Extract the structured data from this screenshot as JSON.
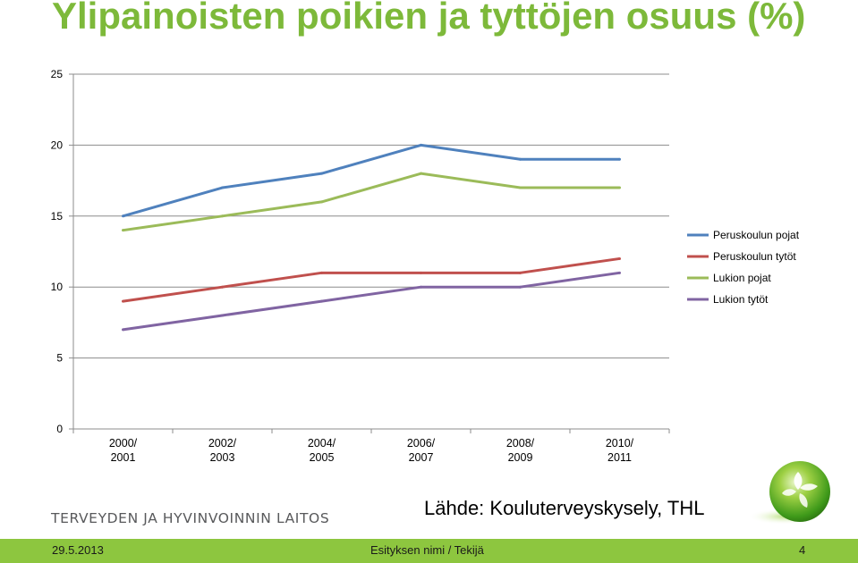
{
  "slide": {
    "title": "Ylipainoisten poikien ja tyttöjen osuus (%)",
    "organization": "TERVEYDEN JA HYVINVOINNIN LAITOS",
    "source": "Lähde: Kouluterveyskysely, THL",
    "footer_date": "29.5.2013",
    "footer_center": "Esityksen nimi / Tekijä",
    "page_number": "4"
  },
  "colors": {
    "title": "#7db93a",
    "footer_bar": "#8dc63f"
  },
  "chart_data": {
    "type": "line",
    "categories": [
      [
        "2000/",
        "2001"
      ],
      [
        "2002/",
        "2003"
      ],
      [
        "2004/",
        "2005"
      ],
      [
        "2006/",
        "2007"
      ],
      [
        "2008/",
        "2009"
      ],
      [
        "2010/",
        "2011"
      ]
    ],
    "ylim": [
      0,
      25
    ],
    "yticks": [
      0,
      5,
      10,
      15,
      20,
      25
    ],
    "grid": true,
    "legend_position": "right",
    "series": [
      {
        "name": "Peruskoulun pojat",
        "color": "#4f81bd",
        "values": [
          15,
          17,
          18,
          20,
          19,
          19
        ]
      },
      {
        "name": "Peruskoulun tytöt",
        "color": "#c0504d",
        "values": [
          9,
          10,
          11,
          11,
          11,
          12
        ]
      },
      {
        "name": "Lukion pojat",
        "color": "#9bbb59",
        "values": [
          14,
          15,
          16,
          18,
          17,
          17
        ]
      },
      {
        "name": "Lukion tytöt",
        "color": "#8064a2",
        "values": [
          7,
          8,
          9,
          10,
          10,
          11
        ]
      }
    ]
  }
}
